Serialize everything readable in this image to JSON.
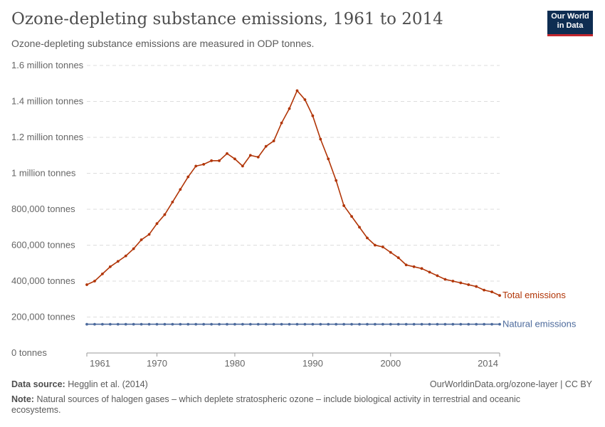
{
  "header": {
    "title": "Ozone-depleting substance emissions, 1961 to 2014",
    "subtitle": "Ozone-depleting substance emissions are measured in ODP tonnes.",
    "logo": "Our World in Data"
  },
  "chart_data": {
    "type": "line",
    "title": "Ozone-depleting substance emissions, 1961 to 2014",
    "ylim": [
      0,
      1600000
    ],
    "xlim": [
      1961,
      2014
    ],
    "grid": "horizontal dashed",
    "legend": "right, inline labels",
    "y_ticks": [
      {
        "v": 0,
        "label": "0 tonnes"
      },
      {
        "v": 200000,
        "label": "200,000 tonnes"
      },
      {
        "v": 400000,
        "label": "400,000 tonnes"
      },
      {
        "v": 600000,
        "label": "600,000 tonnes"
      },
      {
        "v": 800000,
        "label": "800,000 tonnes"
      },
      {
        "v": 1000000,
        "label": "1 million tonnes"
      },
      {
        "v": 1200000,
        "label": "1.2 million tonnes"
      },
      {
        "v": 1400000,
        "label": "1.4 million tonnes"
      },
      {
        "v": 1600000,
        "label": "1.6 million tonnes"
      }
    ],
    "x_ticks": [
      1961,
      1970,
      1980,
      1990,
      2000,
      2014
    ],
    "x": [
      1961,
      1962,
      1963,
      1964,
      1965,
      1966,
      1967,
      1968,
      1969,
      1970,
      1971,
      1972,
      1973,
      1974,
      1975,
      1976,
      1977,
      1978,
      1979,
      1980,
      1981,
      1982,
      1983,
      1984,
      1985,
      1986,
      1987,
      1988,
      1989,
      1990,
      1991,
      1992,
      1993,
      1994,
      1995,
      1996,
      1997,
      1998,
      1999,
      2000,
      2001,
      2002,
      2003,
      2004,
      2005,
      2006,
      2007,
      2008,
      2009,
      2010,
      2011,
      2012,
      2013,
      2014
    ],
    "series": [
      {
        "name": "Total emissions",
        "color": "#b13507",
        "values": [
          380000,
          400000,
          440000,
          480000,
          510000,
          540000,
          580000,
          630000,
          660000,
          720000,
          770000,
          840000,
          910000,
          980000,
          1040000,
          1050000,
          1070000,
          1070000,
          1110000,
          1080000,
          1040000,
          1100000,
          1090000,
          1150000,
          1180000,
          1280000,
          1360000,
          1460000,
          1410000,
          1320000,
          1190000,
          1080000,
          960000,
          820000,
          760000,
          700000,
          640000,
          600000,
          590000,
          560000,
          530000,
          490000,
          480000,
          470000,
          450000,
          430000,
          410000,
          400000,
          390000,
          380000,
          370000,
          350000,
          340000,
          320000
        ]
      },
      {
        "name": "Natural emissions",
        "color": "#4c6a9c",
        "values": [
          160000,
          160000,
          160000,
          160000,
          160000,
          160000,
          160000,
          160000,
          160000,
          160000,
          160000,
          160000,
          160000,
          160000,
          160000,
          160000,
          160000,
          160000,
          160000,
          160000,
          160000,
          160000,
          160000,
          160000,
          160000,
          160000,
          160000,
          160000,
          160000,
          160000,
          160000,
          160000,
          160000,
          160000,
          160000,
          160000,
          160000,
          160000,
          160000,
          160000,
          160000,
          160000,
          160000,
          160000,
          160000,
          160000,
          160000,
          160000,
          160000,
          160000,
          160000,
          160000,
          160000,
          160000
        ]
      }
    ]
  },
  "footer": {
    "source_label": "Data source:",
    "source": "Hegglin et al. (2014)",
    "url": "OurWorldinData.org/ozone-layer | CC BY",
    "note_label": "Note:",
    "note": "Natural sources of halogen gases – which deplete stratospheric ozone – include biological activity in terrestrial and oceanic ecosystems."
  }
}
